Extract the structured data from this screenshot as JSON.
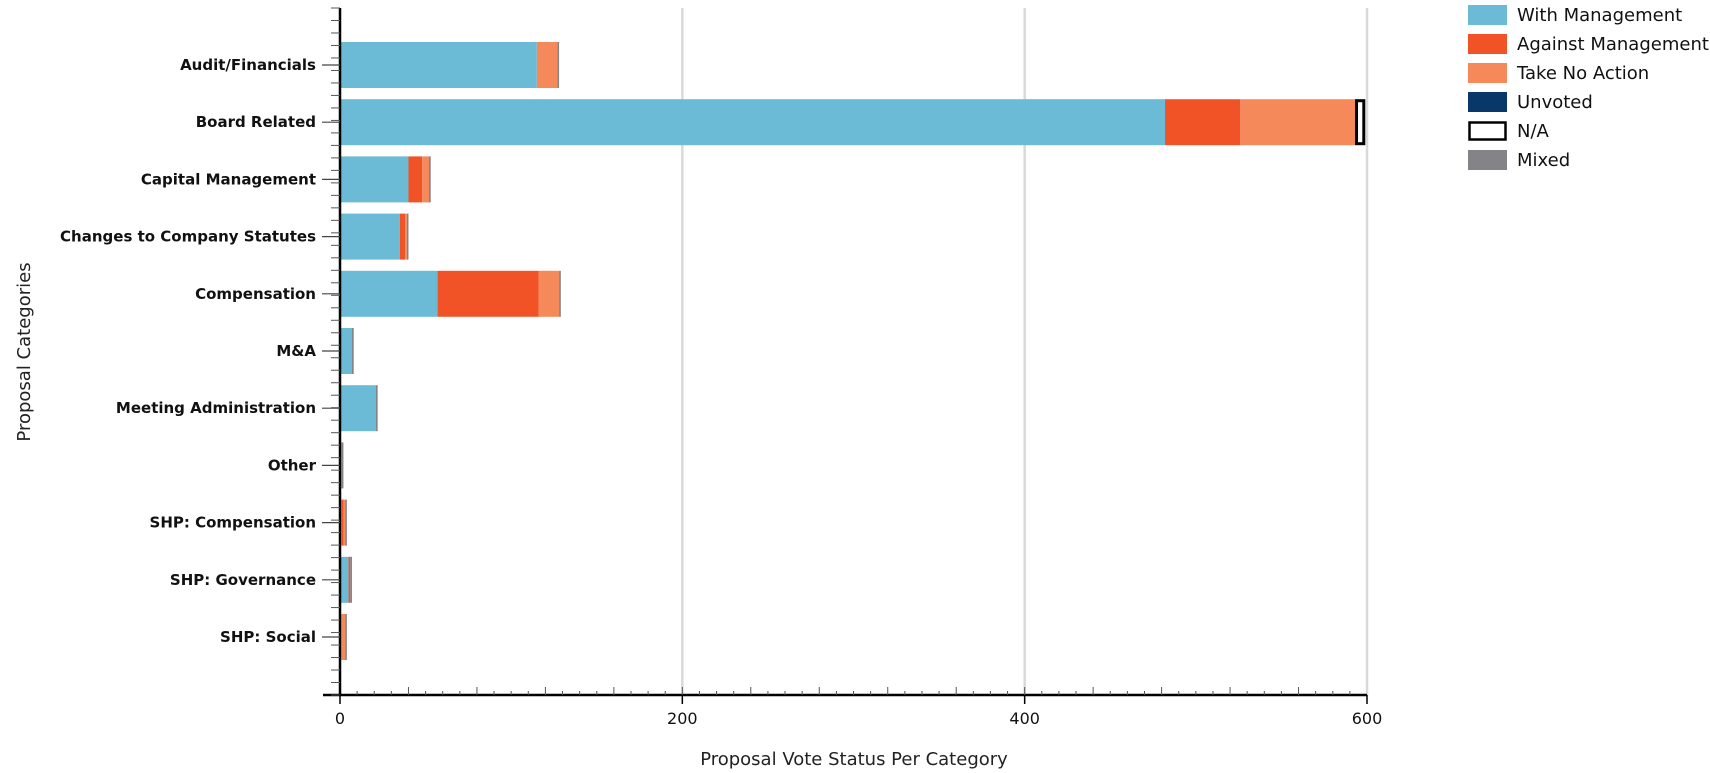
{
  "chart_data": {
    "type": "bar",
    "orientation": "horizontal",
    "stacked": true,
    "xlabel": "Proposal Vote Status Per Category",
    "ylabel": "Proposal Categories",
    "xlim": [
      0,
      600
    ],
    "xticks": [
      "0",
      "200",
      "400",
      "600"
    ],
    "grid": true,
    "legend_position": "top-right",
    "categories": [
      "Audit/Financials",
      "Board Related",
      "Capital Management",
      "Changes to Company Statutes",
      "Compensation",
      "M&A",
      "Meeting Administration",
      "Other",
      "SHP: Compensation",
      "SHP: Governance",
      "SHP: Social"
    ],
    "series": [
      {
        "name": "With Management",
        "color": "#6bbbd6",
        "values": [
          115,
          482,
          40,
          35,
          57,
          7,
          21,
          1,
          1,
          5,
          1
        ]
      },
      {
        "name": "Against Management",
        "color": "#f15326",
        "values": [
          0,
          44,
          8,
          3,
          59,
          0,
          0,
          0,
          1,
          1,
          0
        ]
      },
      {
        "name": "Take No Action",
        "color": "#f5895a",
        "values": [
          12,
          67,
          4,
          1,
          12,
          0,
          0,
          0,
          1,
          0,
          2
        ]
      },
      {
        "name": "Unvoted",
        "color": "#083869",
        "values": [
          0,
          0,
          0,
          0,
          0,
          0,
          0,
          0,
          0,
          0,
          0
        ]
      },
      {
        "name": "N/A",
        "color": "#ffffff",
        "values": [
          0,
          6,
          0,
          0,
          0,
          0,
          0,
          0,
          0,
          0,
          0
        ]
      },
      {
        "name": "Mixed",
        "color": "#838388",
        "values": [
          1,
          0,
          1,
          1,
          1,
          1,
          1,
          1,
          1,
          1,
          1
        ]
      }
    ]
  }
}
